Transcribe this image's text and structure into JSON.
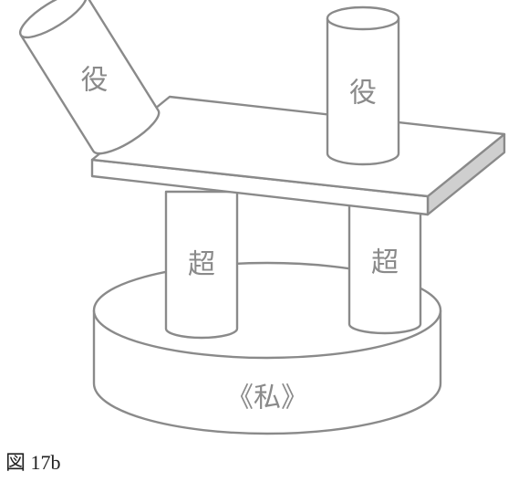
{
  "labels": {
    "tilted_cylinder": "役",
    "upright_cylinder": "役",
    "left_pillar": "超",
    "right_pillar": "超",
    "base": "《私》"
  },
  "caption": "図 17b"
}
